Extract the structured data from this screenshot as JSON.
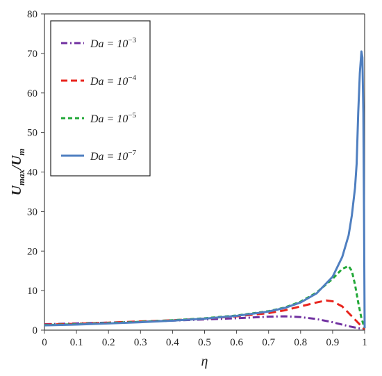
{
  "chart_data": {
    "type": "line",
    "xlabel": "η",
    "ylabel": "U_max/U_m",
    "ylabel_parts": {
      "base1": "U",
      "sub1": "max",
      "sep": "/",
      "base2": "U",
      "sub2": "m"
    },
    "xlim": [
      0,
      1
    ],
    "ylim": [
      0,
      80
    ],
    "xticks": [
      "0",
      "0.1",
      "0.2",
      "0.3",
      "0.4",
      "0.5",
      "0.6",
      "0.7",
      "0.8",
      "0.9",
      "1"
    ],
    "yticks": [
      "0",
      "10",
      "20",
      "30",
      "40",
      "50",
      "60",
      "70",
      "80"
    ],
    "grid": false,
    "legend_position": "top-left",
    "series": [
      {
        "name": "Da = 10^-3",
        "legend_prefix": "Da = 10",
        "legend_exp": "−3",
        "color": "#7030a0",
        "style": "dashdot",
        "points": [
          [
            0,
            1.5
          ],
          [
            0.1,
            1.7
          ],
          [
            0.2,
            1.9
          ],
          [
            0.3,
            2.1
          ],
          [
            0.4,
            2.4
          ],
          [
            0.5,
            2.7
          ],
          [
            0.6,
            3.0
          ],
          [
            0.65,
            3.2
          ],
          [
            0.7,
            3.4
          ],
          [
            0.75,
            3.5
          ],
          [
            0.8,
            3.3
          ],
          [
            0.85,
            2.8
          ],
          [
            0.9,
            2.0
          ],
          [
            0.95,
            1.0
          ],
          [
            0.98,
            0.5
          ],
          [
            1,
            0.3
          ]
        ]
      },
      {
        "name": "Da = 10^-4",
        "legend_prefix": "Da = 10",
        "legend_exp": "−4",
        "color": "#e8251e",
        "style": "dashed",
        "points": [
          [
            0,
            1.4
          ],
          [
            0.1,
            1.6
          ],
          [
            0.2,
            1.9
          ],
          [
            0.3,
            2.2
          ],
          [
            0.4,
            2.5
          ],
          [
            0.5,
            2.9
          ],
          [
            0.6,
            3.5
          ],
          [
            0.7,
            4.3
          ],
          [
            0.75,
            5.0
          ],
          [
            0.8,
            6.0
          ],
          [
            0.85,
            7.0
          ],
          [
            0.88,
            7.5
          ],
          [
            0.9,
            7.3
          ],
          [
            0.93,
            6.0
          ],
          [
            0.96,
            3.5
          ],
          [
            0.99,
            1.0
          ],
          [
            1,
            0.2
          ]
        ]
      },
      {
        "name": "Da = 10^-5",
        "legend_prefix": "Da = 10",
        "legend_exp": "−5",
        "color": "#22a838",
        "style": "dashed-short",
        "points": [
          [
            0,
            1.3
          ],
          [
            0.1,
            1.5
          ],
          [
            0.2,
            1.8
          ],
          [
            0.3,
            2.1
          ],
          [
            0.4,
            2.5
          ],
          [
            0.5,
            3.0
          ],
          [
            0.6,
            3.7
          ],
          [
            0.7,
            4.8
          ],
          [
            0.75,
            5.7
          ],
          [
            0.8,
            7.2
          ],
          [
            0.85,
            9.5
          ],
          [
            0.9,
            13.0
          ],
          [
            0.93,
            15.5
          ],
          [
            0.95,
            16.2
          ],
          [
            0.96,
            15.0
          ],
          [
            0.97,
            11.5
          ],
          [
            0.98,
            7.0
          ],
          [
            0.99,
            3.0
          ],
          [
            1,
            0.5
          ]
        ]
      },
      {
        "name": "Da = 10^-7",
        "legend_prefix": "Da = 10",
        "legend_exp": "−7",
        "color": "#4f7fc0",
        "style": "solid",
        "points": [
          [
            0,
            1.2
          ],
          [
            0.1,
            1.4
          ],
          [
            0.2,
            1.7
          ],
          [
            0.3,
            2.0
          ],
          [
            0.4,
            2.4
          ],
          [
            0.5,
            2.9
          ],
          [
            0.6,
            3.6
          ],
          [
            0.7,
            4.7
          ],
          [
            0.75,
            5.6
          ],
          [
            0.8,
            7.0
          ],
          [
            0.85,
            9.3
          ],
          [
            0.9,
            13.5
          ],
          [
            0.93,
            18.5
          ],
          [
            0.95,
            24.0
          ],
          [
            0.96,
            29.0
          ],
          [
            0.97,
            36.0
          ],
          [
            0.975,
            42.0
          ],
          [
            0.98,
            55.0
          ],
          [
            0.985,
            65.0
          ],
          [
            0.99,
            70.5
          ],
          [
            0.993,
            69.0
          ],
          [
            0.996,
            55.0
          ],
          [
            0.998,
            30.0
          ],
          [
            1,
            0.5
          ]
        ]
      }
    ]
  }
}
